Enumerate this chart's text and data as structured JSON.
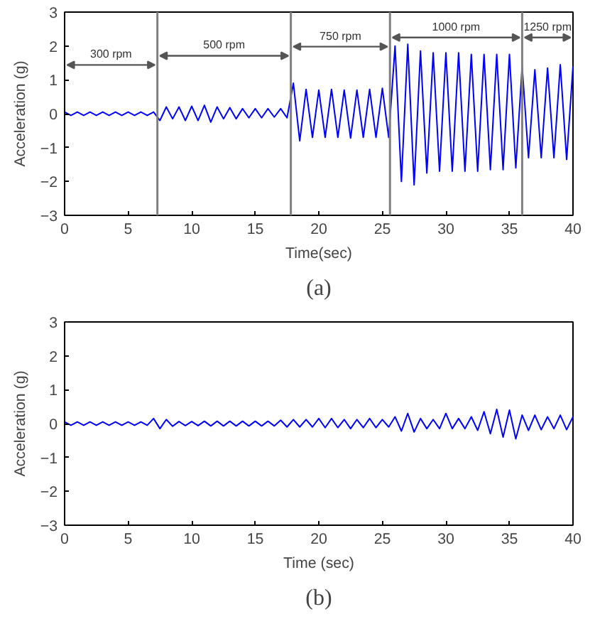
{
  "chart_data": [
    {
      "type": "line",
      "title": "(a)",
      "xlabel": "Time(sec)",
      "ylabel": "Acceleration (g)",
      "x": [
        0,
        0.5,
        1,
        1.5,
        2,
        2.5,
        3,
        3.5,
        4,
        4.5,
        5,
        5.5,
        6,
        6.5,
        7,
        7.5,
        8,
        8.5,
        9,
        9.5,
        10,
        10.5,
        11,
        11.5,
        12,
        12.5,
        13,
        13.5,
        14,
        14.5,
        15,
        15.5,
        16,
        16.5,
        17,
        17.5,
        18,
        18.5,
        19,
        19.5,
        20,
        20.5,
        21,
        21.5,
        22,
        22.5,
        23,
        23.5,
        24,
        24.5,
        25,
        25.5,
        26,
        26.5,
        27,
        27.5,
        28,
        28.5,
        29,
        29.5,
        30,
        30.5,
        31,
        31.5,
        32,
        32.5,
        33,
        33.5,
        34,
        34.5,
        35,
        35.5,
        36,
        36.5,
        37,
        37.5,
        38,
        38.5,
        39,
        39.5,
        40
      ],
      "series": [
        {
          "color": "#0000ff",
          "values": [
            0.05,
            -0.05,
            0.05,
            -0.05,
            0.05,
            -0.05,
            0.05,
            -0.05,
            0.05,
            -0.05,
            0.05,
            -0.05,
            0.05,
            -0.05,
            0.05,
            -0.2,
            0.2,
            -0.15,
            0.2,
            -0.2,
            0.22,
            -0.2,
            0.25,
            -0.25,
            0.2,
            -0.15,
            0.18,
            -0.15,
            0.15,
            -0.12,
            0.15,
            -0.12,
            0.15,
            -0.1,
            0.15,
            -0.12,
            0.9,
            -0.8,
            0.72,
            -0.7,
            0.7,
            -0.7,
            0.72,
            -0.7,
            0.7,
            -0.72,
            0.7,
            -0.7,
            0.72,
            -0.7,
            0.75,
            -0.7,
            2.0,
            -2.0,
            2.05,
            -2.1,
            1.85,
            -1.75,
            1.8,
            -1.7,
            1.8,
            -1.7,
            1.8,
            -1.7,
            1.75,
            -1.7,
            1.75,
            -1.65,
            1.75,
            -1.65,
            1.75,
            -1.6,
            1.4,
            -1.3,
            1.3,
            -1.3,
            1.35,
            -1.3,
            1.45,
            -1.35,
            1.4
          ]
        }
      ],
      "xlim": [
        0,
        40
      ],
      "ylim": [
        -3,
        3
      ],
      "xticks": [
        0,
        5,
        10,
        15,
        20,
        25,
        30,
        35,
        40
      ],
      "yticks": [
        -3,
        -2,
        -1,
        0,
        1,
        2,
        3
      ],
      "grid": false,
      "ref_lines": [
        {
          "axis": "x",
          "value": 7.3,
          "color": "#808080"
        },
        {
          "axis": "x",
          "value": 17.8,
          "color": "#808080"
        },
        {
          "axis": "x",
          "value": 25.6,
          "color": "#808080"
        },
        {
          "axis": "x",
          "value": 36,
          "color": "#808080"
        }
      ],
      "annotations": [
        "300 rpm",
        "500 rpm",
        "750 rpm",
        "1000 rpm",
        "1250 rpm"
      ]
    },
    {
      "type": "line",
      "title": "(b)",
      "xlabel": "Time (sec)",
      "ylabel": "Acceleration (g)",
      "x": [
        0,
        0.5,
        1,
        1.5,
        2,
        2.5,
        3,
        3.5,
        4,
        4.5,
        5,
        5.5,
        6,
        6.5,
        7,
        7.5,
        8,
        8.5,
        9,
        9.5,
        10,
        10.5,
        11,
        11.5,
        12,
        12.5,
        13,
        13.5,
        14,
        14.5,
        15,
        15.5,
        16,
        16.5,
        17,
        17.5,
        18,
        18.5,
        19,
        19.5,
        20,
        20.5,
        21,
        21.5,
        22,
        22.5,
        23,
        23.5,
        24,
        24.5,
        25,
        25.5,
        26,
        26.5,
        27,
        27.5,
        28,
        28.5,
        29,
        29.5,
        30,
        30.5,
        31,
        31.5,
        32,
        32.5,
        33,
        33.5,
        34,
        34.5,
        35,
        35.5,
        36,
        36.5,
        37,
        37.5,
        38,
        38.5,
        39,
        39.5,
        40
      ],
      "series": [
        {
          "color": "#0000ff",
          "values": [
            0.05,
            -0.05,
            0.05,
            -0.05,
            0.05,
            -0.05,
            0.05,
            -0.05,
            0.05,
            -0.05,
            0.05,
            -0.05,
            0.05,
            -0.05,
            0.15,
            -0.15,
            0.12,
            -0.08,
            0.06,
            -0.06,
            0.06,
            -0.06,
            0.07,
            -0.07,
            0.07,
            -0.07,
            0.07,
            -0.07,
            0.07,
            -0.07,
            0.07,
            -0.07,
            0.07,
            -0.07,
            0.1,
            -0.1,
            0.12,
            -0.1,
            0.12,
            -0.1,
            0.15,
            -0.12,
            0.15,
            -0.12,
            0.12,
            -0.15,
            0.12,
            -0.12,
            0.15,
            -0.12,
            0.12,
            -0.1,
            0.2,
            -0.22,
            0.3,
            -0.25,
            0.15,
            -0.15,
            0.12,
            -0.15,
            0.3,
            -0.15,
            0.15,
            -0.15,
            0.2,
            -0.2,
            0.35,
            -0.3,
            0.42,
            -0.4,
            0.4,
            -0.45,
            0.25,
            -0.2,
            0.25,
            -0.18,
            0.2,
            -0.15,
            0.25,
            -0.18,
            0.2
          ]
        }
      ],
      "xlim": [
        0,
        40
      ],
      "ylim": [
        -3,
        3
      ],
      "xticks": [
        0,
        5,
        10,
        15,
        20,
        25,
        30,
        35,
        40
      ],
      "yticks": [
        -3,
        -2,
        -1,
        0,
        1,
        2,
        3
      ],
      "grid": false
    }
  ]
}
